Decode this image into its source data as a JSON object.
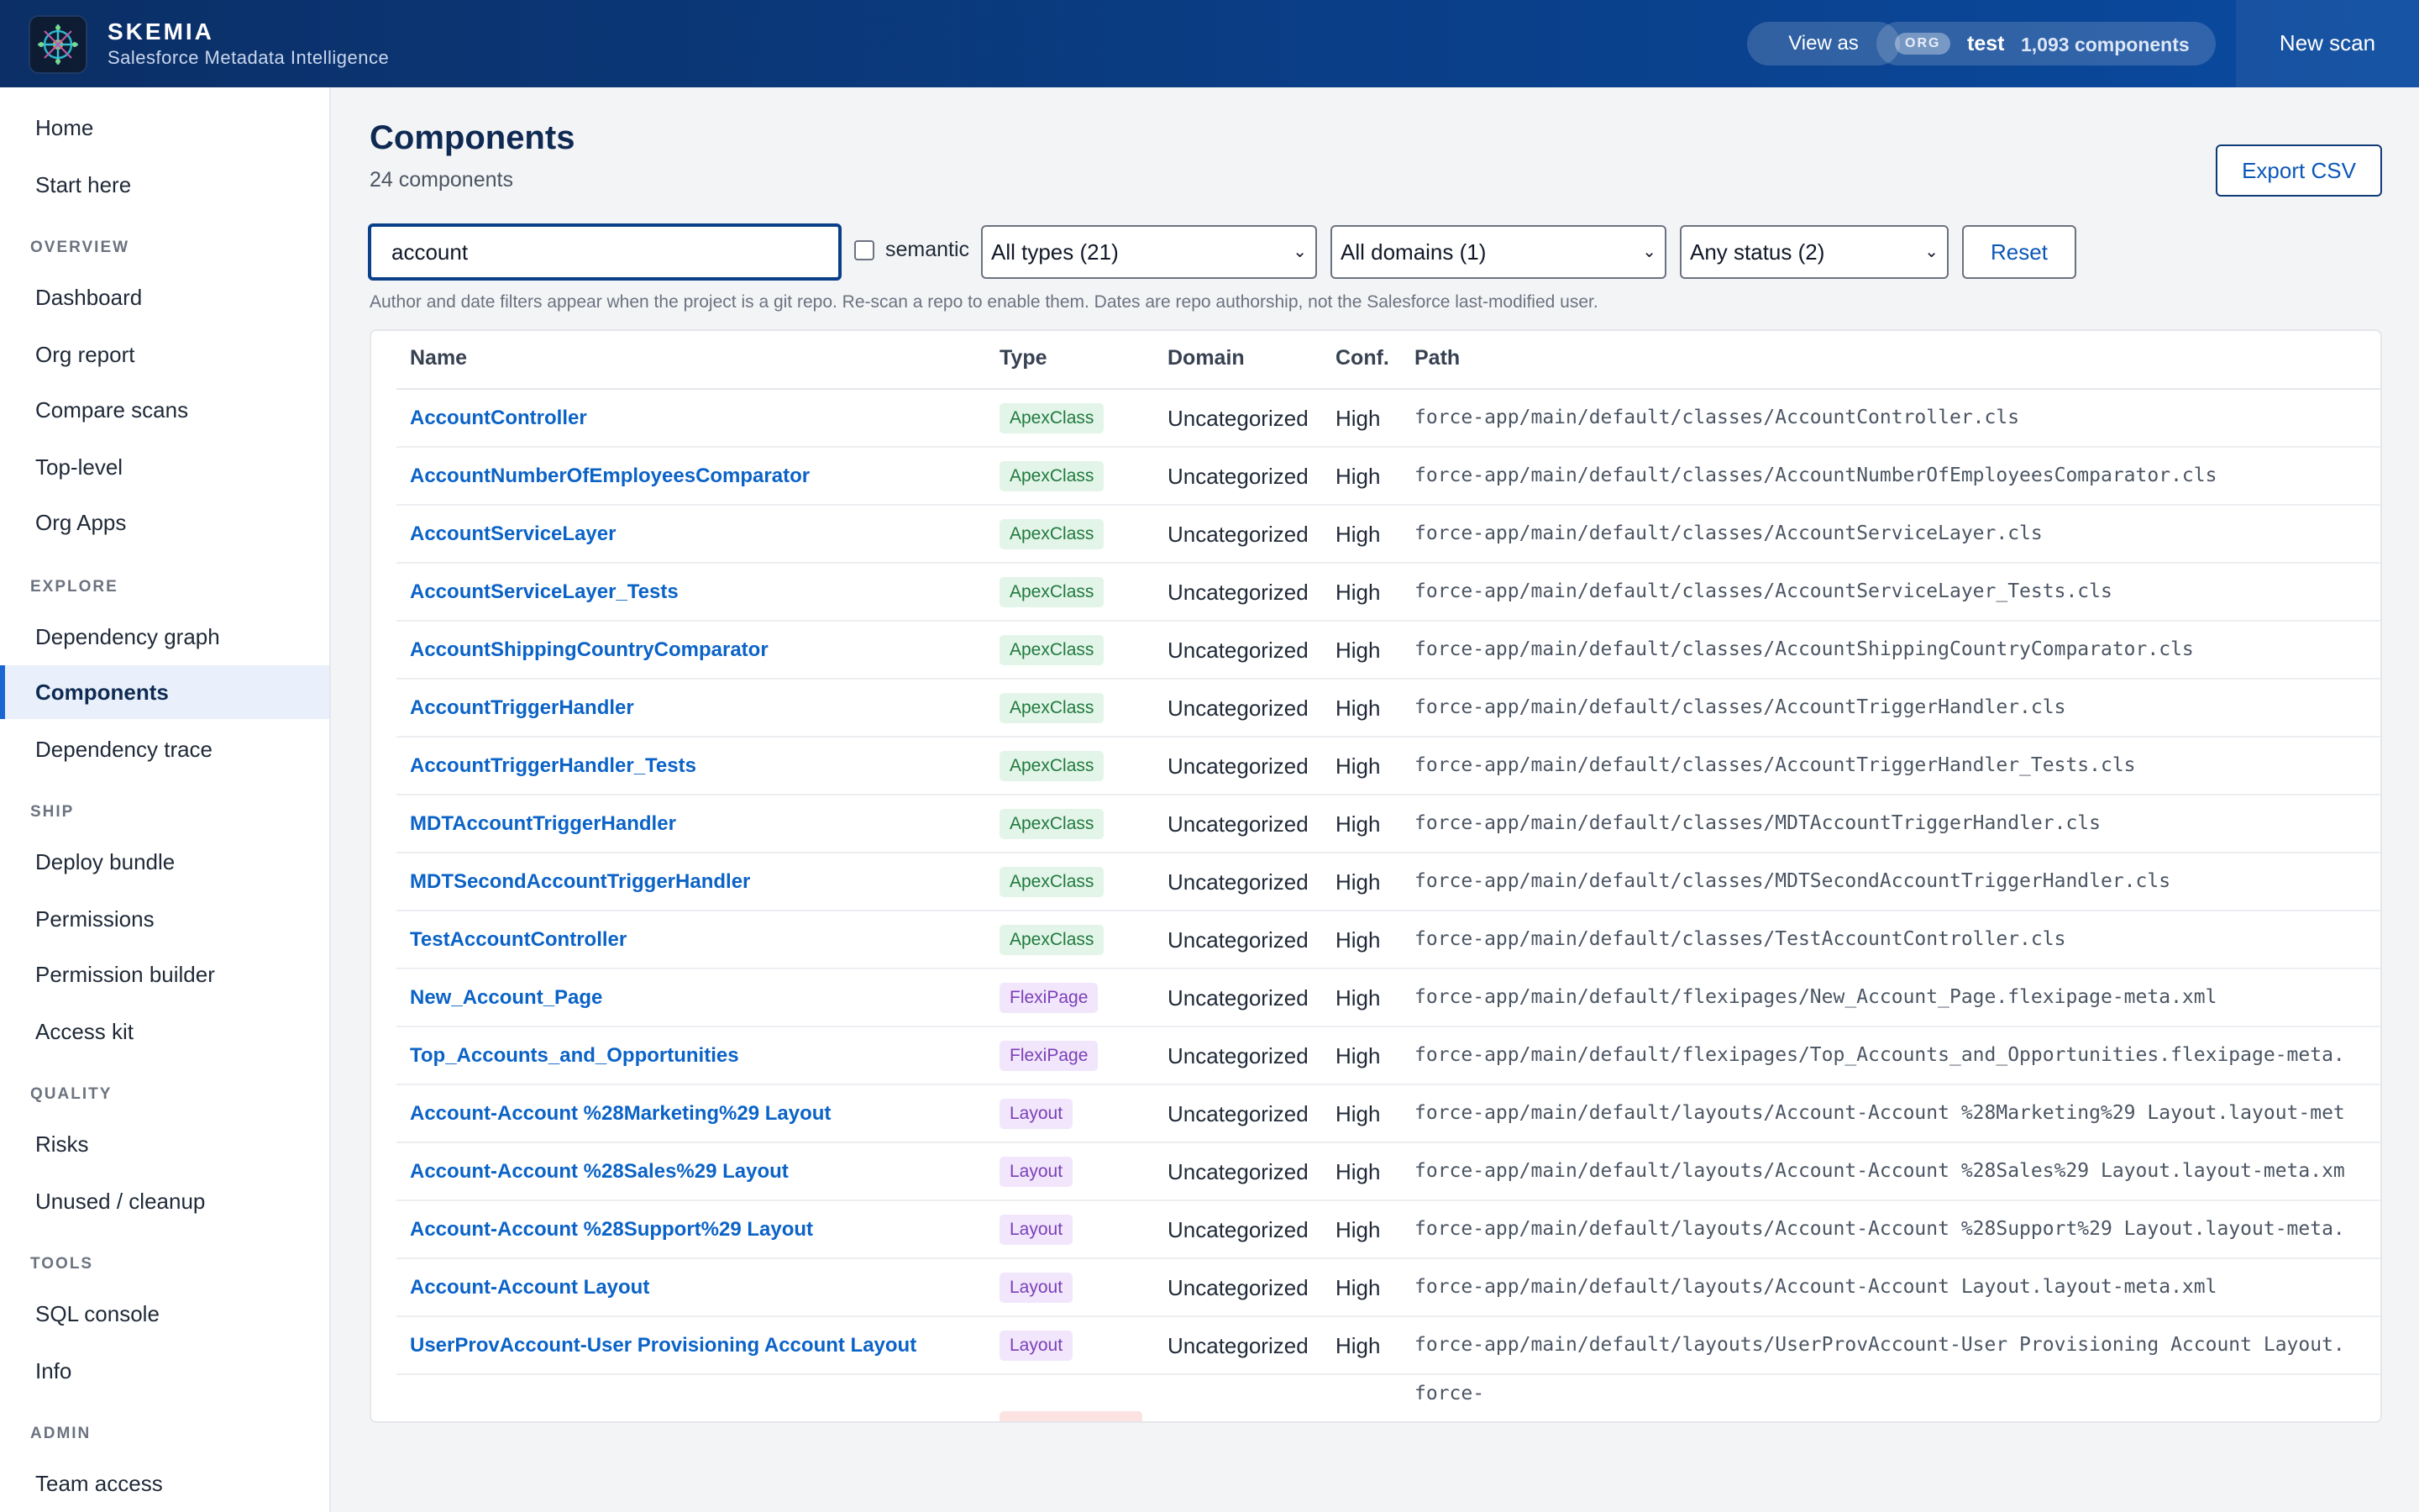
{
  "header": {
    "brand": "SKEMIA",
    "tagline": "Salesforce Metadata Intelligence",
    "view_as": "View as",
    "org_tag": "ORG",
    "org_name": "test",
    "org_components": "1,093 components",
    "new_scan": "New scan"
  },
  "sidebar": {
    "top": [
      {
        "label": "Home"
      },
      {
        "label": "Start here"
      }
    ],
    "sections": [
      {
        "title": "OVERVIEW",
        "items": [
          "Dashboard",
          "Org report",
          "Compare scans",
          "Top-level",
          "Org Apps"
        ]
      },
      {
        "title": "EXPLORE",
        "items": [
          "Dependency graph",
          "Components",
          "Dependency trace"
        ]
      },
      {
        "title": "SHIP",
        "items": [
          "Deploy bundle",
          "Permissions",
          "Permission builder",
          "Access kit"
        ]
      },
      {
        "title": "QUALITY",
        "items": [
          "Risks",
          "Unused / cleanup"
        ]
      },
      {
        "title": "TOOLS",
        "items": [
          "SQL console",
          "Info"
        ]
      },
      {
        "title": "ADMIN",
        "items": [
          "Team access"
        ]
      }
    ],
    "active": "Components"
  },
  "main": {
    "title": "Components",
    "count": "24 components",
    "export": "Export CSV",
    "search_value": "account",
    "semantic_label": "semantic",
    "semantic_checked": false,
    "type_filter": "All types (21)",
    "domain_filter": "All domains (1)",
    "status_filter": "Any status (2)",
    "reset": "Reset",
    "hint": "Author and date filters appear when the project is a git repo. Re-scan a repo to enable them. Dates are repo authorship, not the Salesforce last-modified user."
  },
  "table": {
    "columns": [
      "Name",
      "Type",
      "Domain",
      "Conf.",
      "Path"
    ],
    "rows": [
      {
        "name": "AccountController",
        "type": "ApexClass",
        "domain": "Uncategorized",
        "conf": "High",
        "path": "force-app/main/default/classes/AccountController.cls"
      },
      {
        "name": "AccountNumberOfEmployeesComparator",
        "type": "ApexClass",
        "domain": "Uncategorized",
        "conf": "High",
        "path": "force-app/main/default/classes/AccountNumberOfEmployeesComparator.cls"
      },
      {
        "name": "AccountServiceLayer",
        "type": "ApexClass",
        "domain": "Uncategorized",
        "conf": "High",
        "path": "force-app/main/default/classes/AccountServiceLayer.cls"
      },
      {
        "name": "AccountServiceLayer_Tests",
        "type": "ApexClass",
        "domain": "Uncategorized",
        "conf": "High",
        "path": "force-app/main/default/classes/AccountServiceLayer_Tests.cls"
      },
      {
        "name": "AccountShippingCountryComparator",
        "type": "ApexClass",
        "domain": "Uncategorized",
        "conf": "High",
        "path": "force-app/main/default/classes/AccountShippingCountryComparator.cls"
      },
      {
        "name": "AccountTriggerHandler",
        "type": "ApexClass",
        "domain": "Uncategorized",
        "conf": "High",
        "path": "force-app/main/default/classes/AccountTriggerHandler.cls"
      },
      {
        "name": "AccountTriggerHandler_Tests",
        "type": "ApexClass",
        "domain": "Uncategorized",
        "conf": "High",
        "path": "force-app/main/default/classes/AccountTriggerHandler_Tests.cls"
      },
      {
        "name": "MDTAccountTriggerHandler",
        "type": "ApexClass",
        "domain": "Uncategorized",
        "conf": "High",
        "path": "force-app/main/default/classes/MDTAccountTriggerHandler.cls"
      },
      {
        "name": "MDTSecondAccountTriggerHandler",
        "type": "ApexClass",
        "domain": "Uncategorized",
        "conf": "High",
        "path": "force-app/main/default/classes/MDTSecondAccountTriggerHandler.cls"
      },
      {
        "name": "TestAccountController",
        "type": "ApexClass",
        "domain": "Uncategorized",
        "conf": "High",
        "path": "force-app/main/default/classes/TestAccountController.cls"
      },
      {
        "name": "New_Account_Page",
        "type": "FlexiPage",
        "domain": "Uncategorized",
        "conf": "High",
        "path": "force-app/main/default/flexipages/New_Account_Page.flexipage-meta.xml"
      },
      {
        "name": "Top_Accounts_and_Opportunities",
        "type": "FlexiPage",
        "domain": "Uncategorized",
        "conf": "High",
        "path": "force-app/main/default/flexipages/Top_Accounts_and_Opportunities.flexipage-meta."
      },
      {
        "name": "Account-Account %28Marketing%29 Layout",
        "type": "Layout",
        "domain": "Uncategorized",
        "conf": "High",
        "path": "force-app/main/default/layouts/Account-Account %28Marketing%29 Layout.layout-met"
      },
      {
        "name": "Account-Account %28Sales%29 Layout",
        "type": "Layout",
        "domain": "Uncategorized",
        "conf": "High",
        "path": "force-app/main/default/layouts/Account-Account %28Sales%29 Layout.layout-meta.xm"
      },
      {
        "name": "Account-Account %28Support%29 Layout",
        "type": "Layout",
        "domain": "Uncategorized",
        "conf": "High",
        "path": "force-app/main/default/layouts/Account-Account %28Support%29 Layout.layout-meta."
      },
      {
        "name": "Account-Account Layout",
        "type": "Layout",
        "domain": "Uncategorized",
        "conf": "High",
        "path": "force-app/main/default/layouts/Account-Account Layout.layout-meta.xml"
      },
      {
        "name": "UserProvAccount-User Provisioning Account Layout",
        "type": "Layout",
        "domain": "Uncategorized",
        "conf": "High",
        "path": "force-app/main/default/layouts/UserProvAccount-User Provisioning Account Layout."
      }
    ],
    "partial_path": "force-"
  },
  "badge_colors": {
    "ApexClass": {
      "bg": "#e3f4e8",
      "fg": "#1f7a3e"
    },
    "FlexiPage": {
      "bg": "#f1e6fb",
      "fg": "#7b3fb8"
    },
    "Layout": {
      "bg": "#f1e6fb",
      "fg": "#7b3fb8"
    }
  }
}
